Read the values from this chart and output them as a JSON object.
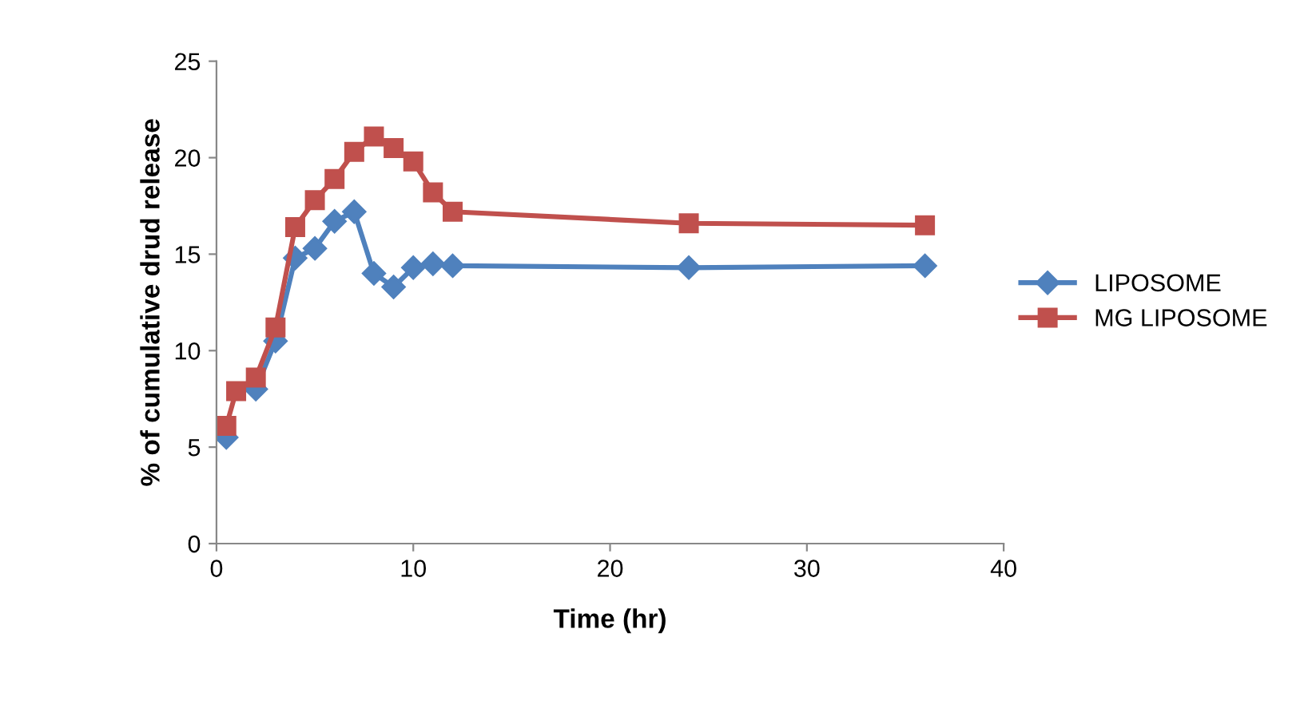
{
  "chart_data": {
    "type": "line",
    "xlabel": "Time (hr)",
    "ylabel": "% of cumulative drud release",
    "xlim": [
      0,
      40
    ],
    "xticks": [
      0,
      10,
      20,
      30,
      40
    ],
    "ylim": [
      0,
      25
    ],
    "yticks": [
      0,
      5,
      10,
      15,
      20,
      25
    ],
    "grid": false,
    "legend": "right",
    "series": [
      {
        "name": "LIPOSOME",
        "color": "#4f81bd",
        "marker": "diamond",
        "x": [
          0.5,
          1,
          2,
          3,
          4,
          5,
          6,
          7,
          8,
          9,
          10,
          11,
          12,
          24,
          36
        ],
        "values": [
          5.5,
          null,
          8.0,
          10.5,
          14.8,
          15.3,
          16.7,
          17.2,
          14.0,
          13.3,
          14.3,
          14.5,
          14.4,
          14.3,
          14.4
        ]
      },
      {
        "name": "MG LIPOSOME",
        "color": "#c0504d",
        "marker": "square",
        "x": [
          0.5,
          1,
          2,
          3,
          4,
          5,
          6,
          7,
          8,
          9,
          10,
          11,
          12,
          24,
          36
        ],
        "values": [
          6.1,
          7.9,
          8.6,
          11.2,
          16.4,
          17.8,
          18.9,
          20.3,
          21.1,
          20.5,
          19.8,
          18.2,
          17.2,
          16.6,
          16.5
        ]
      }
    ]
  }
}
